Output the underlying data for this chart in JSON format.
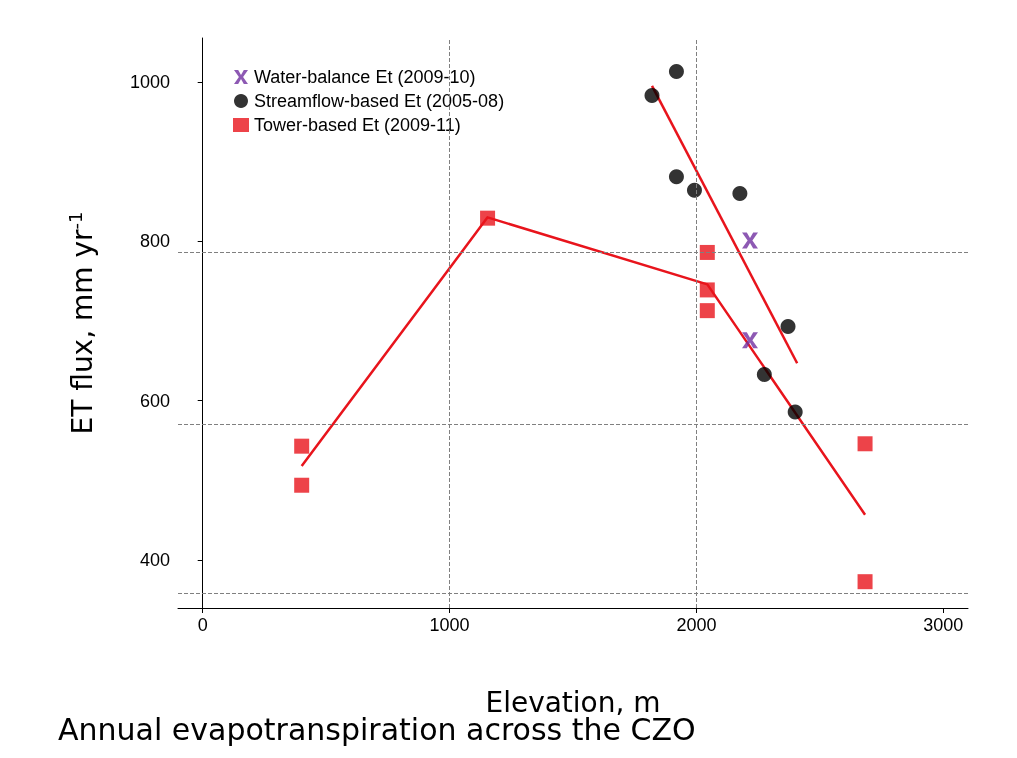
{
  "chart_data": {
    "type": "scatter",
    "xlabel": "Elevation, m",
    "ylabel": "ET flux, mm yr$^{-1}$",
    "xlim": [
      -100,
      3100
    ],
    "xticks": [
      0,
      1000,
      2000,
      3000
    ],
    "ylim": [
      340,
      1055
    ],
    "yticks": [
      400,
      600,
      800,
      1000
    ],
    "grid": false,
    "legend": "top left",
    "series": [
      {
        "name": "Water-balance Et (2009-10)",
        "color": "#7030a0",
        "marker": "cross",
        "x": [
          2217,
          2217
        ],
        "values": [
          801,
          676
        ]
      },
      {
        "name": "Streamflow-based Et (2005-08)",
        "color": "#000000",
        "marker": "circle",
        "x": [
          1820,
          1919,
          1919,
          1992,
          2176,
          2275,
          2371,
          2400
        ],
        "values": [
          983,
          1013,
          881,
          864,
          860,
          633,
          693,
          586
        ]
      },
      {
        "name": "Tower-based Et (2009-11)",
        "color": "#e8141c",
        "marker": "square",
        "x": [
          401,
          401,
          1154,
          2044,
          2044,
          2044,
          2683,
          2683
        ],
        "values": [
          543,
          494,
          829,
          786,
          739,
          713,
          546,
          373
        ]
      },
      {
        "type": "line",
        "color": "#e8141c",
        "marker": "none",
        "x": [
          401,
          1154,
          2044,
          2683
        ],
        "values": [
          518,
          830,
          746,
          457
        ]
      },
      {
        "type": "line",
        "color": "#e8141c",
        "marker": "none",
        "x": [
          1820,
          2408
        ],
        "values": [
          995,
          647
        ]
      }
    ],
    "ref_lines": [
      {
        "axis": "x",
        "value": 1000,
        "color": "#808080",
        "line_style": "dashed"
      },
      {
        "axis": "x",
        "value": 2000,
        "color": "#808080",
        "line_style": "dashed"
      },
      {
        "axis": "y",
        "value": 786,
        "color": "#808080",
        "line_style": "dashed"
      },
      {
        "axis": "y",
        "value": 571,
        "color": "#808080",
        "line_style": "dashed"
      },
      {
        "axis": "y",
        "value": 358,
        "color": "#808080",
        "line_style": "dashed"
      }
    ],
    "annotations": [
      "Annual evapotranspiration across the CZO"
    ]
  }
}
